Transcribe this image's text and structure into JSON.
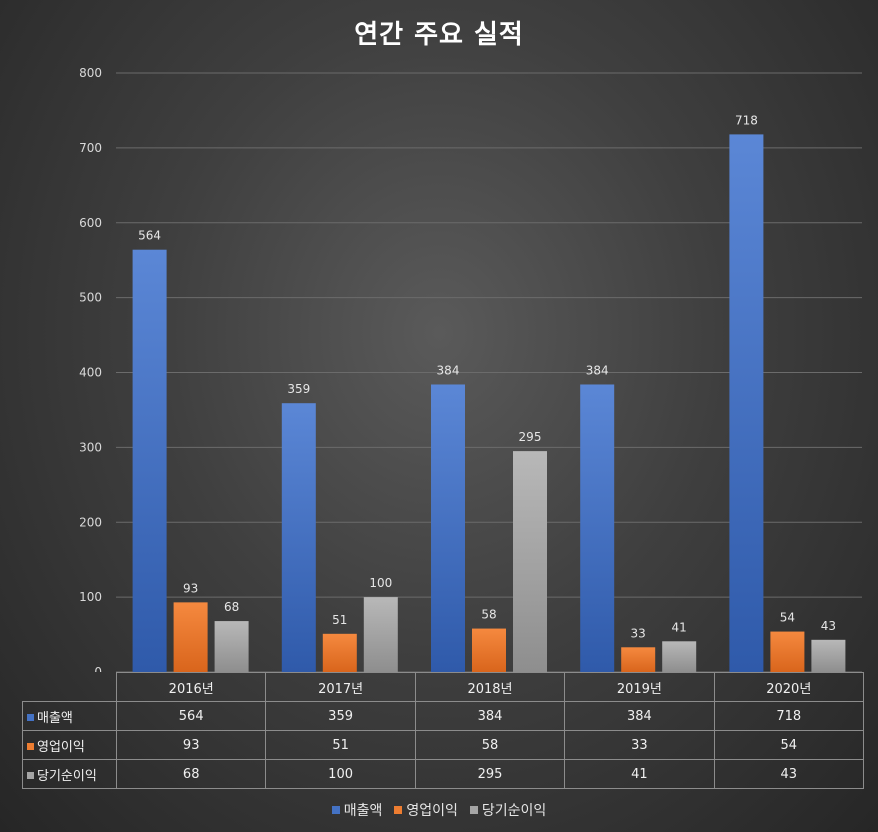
{
  "chart_data": {
    "type": "bar",
    "title": "연간 주요 실적",
    "categories": [
      "2016년",
      "2017년",
      "2018년",
      "2019년",
      "2020년"
    ],
    "series": [
      {
        "name": "매출액",
        "values": [
          564,
          359,
          384,
          384,
          718
        ],
        "color": "#4472c4"
      },
      {
        "name": "영업이익",
        "values": [
          93,
          51,
          58,
          33,
          54
        ],
        "color": "#ed7d31"
      },
      {
        "name": "당기순이익",
        "values": [
          68,
          100,
          295,
          41,
          43
        ],
        "color": "#a5a5a5"
      }
    ],
    "ylim": [
      0,
      800
    ],
    "yticks": [
      "0",
      "100",
      "200",
      "300",
      "400",
      "500",
      "600",
      "700",
      "800"
    ],
    "grid": true,
    "data_labels": true,
    "data_table": true,
    "legend_position": "bottom"
  }
}
